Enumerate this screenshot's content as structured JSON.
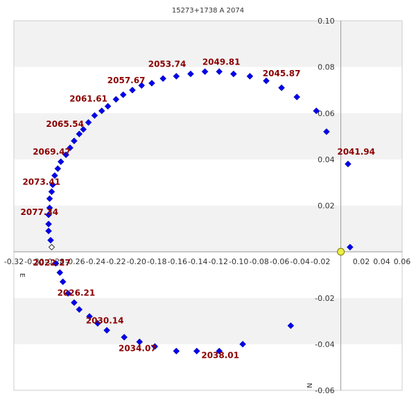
{
  "chart_data": {
    "type": "scatter",
    "title": "15273+1738 A  2074",
    "xlabel": "E",
    "ylabel": "N",
    "xlim": [
      -0.32,
      0.06
    ],
    "ylim": [
      -0.06,
      0.1
    ],
    "x_ticks": [
      -0.32,
      -0.3,
      -0.28,
      -0.26,
      -0.24,
      -0.22,
      -0.2,
      -0.18,
      -0.16,
      -0.14,
      -0.12,
      -0.1,
      -0.08,
      -0.06,
      -0.04,
      -0.02,
      0.02,
      0.04,
      0.06
    ],
    "x_tick_labels": [
      "-0.32",
      "-0.30",
      "-0.28",
      "-0.26",
      "-0.24",
      "-0.22",
      "-0.20",
      "-0.18",
      "-0.16",
      "-0.14",
      "-0.12",
      "-0.10",
      "-0.08",
      "-0.06",
      "-0.04",
      "-0.02",
      "0.02",
      "0.04",
      "0.06"
    ],
    "y_ticks": [
      0.1,
      0.08,
      0.06,
      0.04,
      0.02,
      -0.02,
      -0.04,
      -0.06
    ],
    "y_tick_labels": [
      "0.10",
      "0.08",
      "0.06",
      "0.04",
      "0.02",
      "-0.02",
      "-0.04",
      "-0.06"
    ],
    "grid": "horizontal bands",
    "colors": {
      "orbit": "#0000ee",
      "primary": "#eeee44",
      "label": "#8b0000",
      "band": "#f2f2f2",
      "axis": "#999999"
    },
    "primary_star": {
      "x": 0.0,
      "y": 0.0
    },
    "start_point": {
      "x": -0.283,
      "y": 0.002
    },
    "points": [
      [
        -0.279,
        -0.005
      ],
      [
        -0.275,
        -0.009
      ],
      [
        -0.272,
        -0.013
      ],
      [
        -0.267,
        -0.018
      ],
      [
        -0.261,
        -0.022
      ],
      [
        -0.256,
        -0.025
      ],
      [
        -0.246,
        -0.028
      ],
      [
        -0.238,
        -0.031
      ],
      [
        -0.229,
        -0.034
      ],
      [
        -0.212,
        -0.037
      ],
      [
        -0.197,
        -0.039
      ],
      [
        -0.182,
        -0.041
      ],
      [
        -0.161,
        -0.043
      ],
      [
        -0.141,
        -0.043
      ],
      [
        -0.119,
        -0.043
      ],
      [
        -0.096,
        -0.04
      ],
      [
        -0.049,
        -0.032
      ],
      [
        -0.284,
        0.005
      ],
      [
        -0.286,
        0.009
      ],
      [
        -0.286,
        0.012
      ],
      [
        -0.286,
        0.016
      ],
      [
        -0.285,
        0.019
      ],
      [
        -0.285,
        0.023
      ],
      [
        -0.283,
        0.026
      ],
      [
        -0.282,
        0.029
      ],
      [
        -0.28,
        0.033
      ],
      [
        -0.277,
        0.036
      ],
      [
        -0.274,
        0.039
      ],
      [
        -0.269,
        0.042
      ],
      [
        -0.265,
        0.045
      ],
      [
        -0.261,
        0.048
      ],
      [
        -0.256,
        0.051
      ],
      [
        -0.252,
        0.053
      ],
      [
        -0.247,
        0.056
      ],
      [
        -0.241,
        0.059
      ],
      [
        -0.234,
        0.061
      ],
      [
        -0.228,
        0.063
      ],
      [
        -0.22,
        0.066
      ],
      [
        -0.213,
        0.068
      ],
      [
        -0.204,
        0.07
      ],
      [
        -0.195,
        0.072
      ],
      [
        -0.185,
        0.073
      ],
      [
        -0.174,
        0.075
      ],
      [
        -0.161,
        0.076
      ],
      [
        -0.147,
        0.077
      ],
      [
        -0.133,
        0.078
      ],
      [
        -0.119,
        0.078
      ],
      [
        -0.105,
        0.077
      ],
      [
        -0.089,
        0.076
      ],
      [
        -0.073,
        0.074
      ],
      [
        -0.058,
        0.071
      ],
      [
        -0.043,
        0.067
      ],
      [
        -0.024,
        0.061
      ],
      [
        -0.014,
        0.052
      ],
      [
        0.007,
        0.038
      ],
      [
        0.009,
        0.002
      ]
    ],
    "labels": [
      {
        "text": "2022.27",
        "x": -0.283,
        "y": -0.006
      },
      {
        "text": "2026.21",
        "x": -0.259,
        "y": -0.019
      },
      {
        "text": "2030.14",
        "x": -0.231,
        "y": -0.031
      },
      {
        "text": "2034.07",
        "x": -0.199,
        "y": -0.043
      },
      {
        "text": "2038.01",
        "x": -0.118,
        "y": -0.046
      },
      {
        "text": "2041.94",
        "x": 0.015,
        "y": 0.042
      },
      {
        "text": "2045.87",
        "x": -0.058,
        "y": 0.076
      },
      {
        "text": "2049.81",
        "x": -0.117,
        "y": 0.081
      },
      {
        "text": "2053.74",
        "x": -0.17,
        "y": 0.08
      },
      {
        "text": "2057.67",
        "x": -0.21,
        "y": 0.073
      },
      {
        "text": "2061.61",
        "x": -0.247,
        "y": 0.065
      },
      {
        "text": "2065.54",
        "x": -0.27,
        "y": 0.054
      },
      {
        "text": "2069.47",
        "x": -0.283,
        "y": 0.042
      },
      {
        "text": "2073.41",
        "x": -0.293,
        "y": 0.029
      },
      {
        "text": "2077.34",
        "x": -0.295,
        "y": 0.016
      }
    ]
  }
}
